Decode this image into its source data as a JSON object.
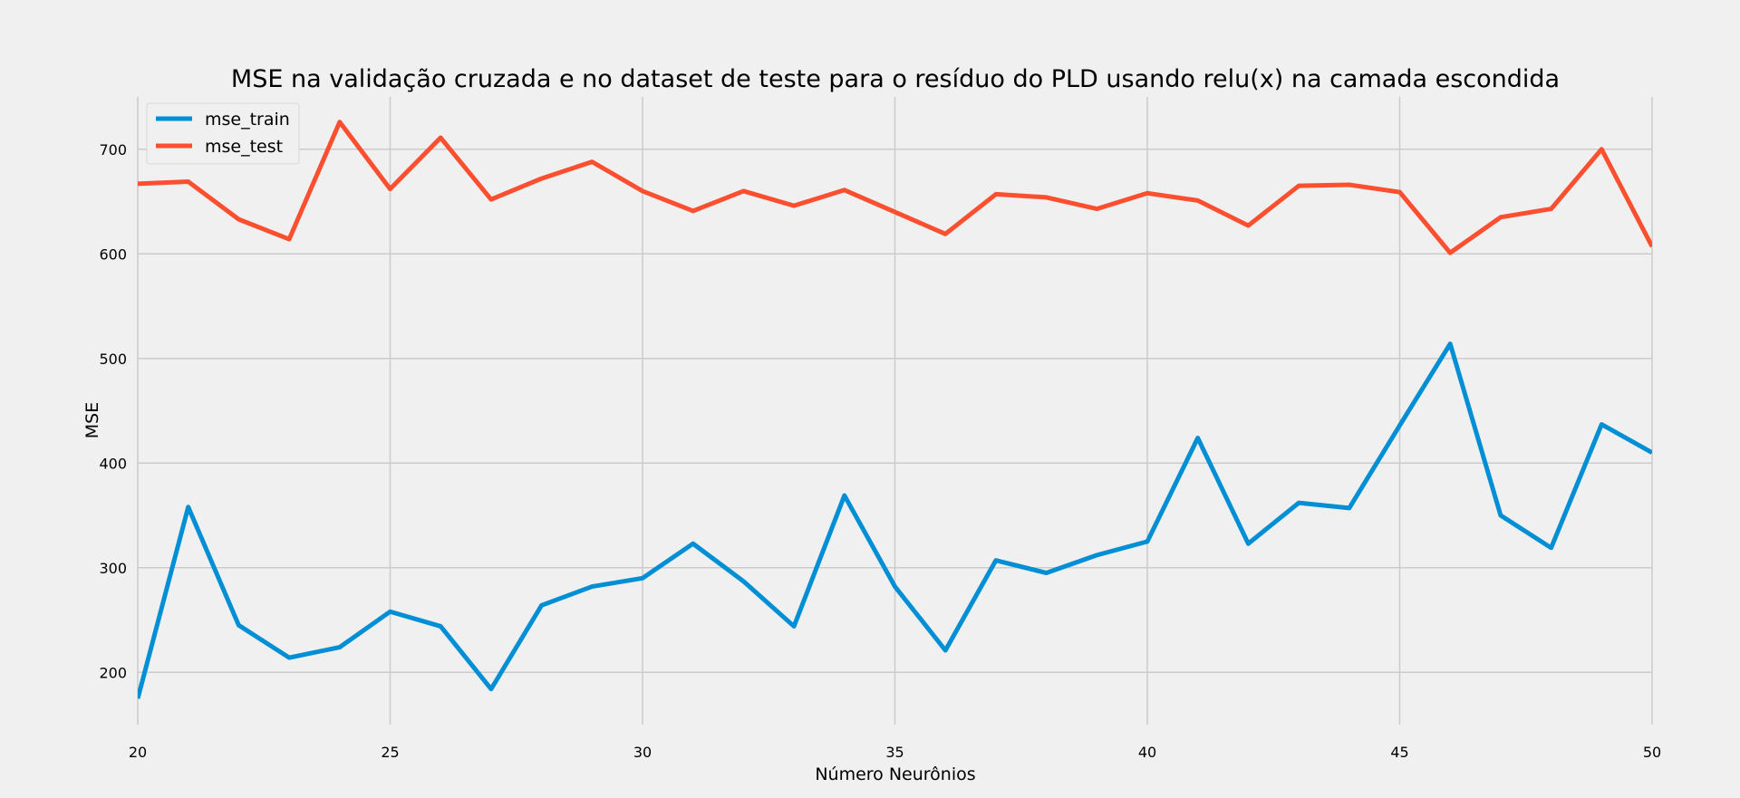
{
  "chart_data": {
    "type": "line",
    "title": "MSE na validação cruzada e no dataset de teste para o resíduo do PLD usando relu(x) na camada escondida",
    "xlabel": "Número Neurônios",
    "ylabel": "MSE",
    "xlim": [
      20,
      50
    ],
    "ylim": [
      150,
      750
    ],
    "xticks": [
      20,
      25,
      30,
      35,
      40,
      45,
      50
    ],
    "yticks": [
      200,
      300,
      400,
      500,
      600,
      700
    ],
    "grid": true,
    "legend_position": "upper-left",
    "x": [
      20,
      21,
      22,
      23,
      24,
      25,
      26,
      27,
      28,
      29,
      30,
      31,
      32,
      33,
      34,
      35,
      36,
      37,
      38,
      39,
      40,
      41,
      42,
      43,
      44,
      45,
      46,
      47,
      48,
      49,
      50
    ],
    "series": [
      {
        "name": "mse_train",
        "color": "#008fd5",
        "values": [
          175,
          358,
          245,
          214,
          224,
          258,
          244,
          184,
          264,
          282,
          290,
          323,
          287,
          244,
          369,
          282,
          221,
          307,
          295,
          312,
          325,
          424,
          323,
          362,
          357,
          436,
          514,
          350,
          319,
          437,
          410
        ]
      },
      {
        "name": "mse_test",
        "color": "#fc4f30",
        "values": [
          667,
          669,
          633,
          614,
          726,
          662,
          711,
          652,
          672,
          688,
          660,
          641,
          660,
          646,
          661,
          640,
          619,
          657,
          654,
          643,
          658,
          651,
          627,
          665,
          666,
          659,
          601,
          635,
          643,
          700,
          607
        ]
      }
    ]
  }
}
